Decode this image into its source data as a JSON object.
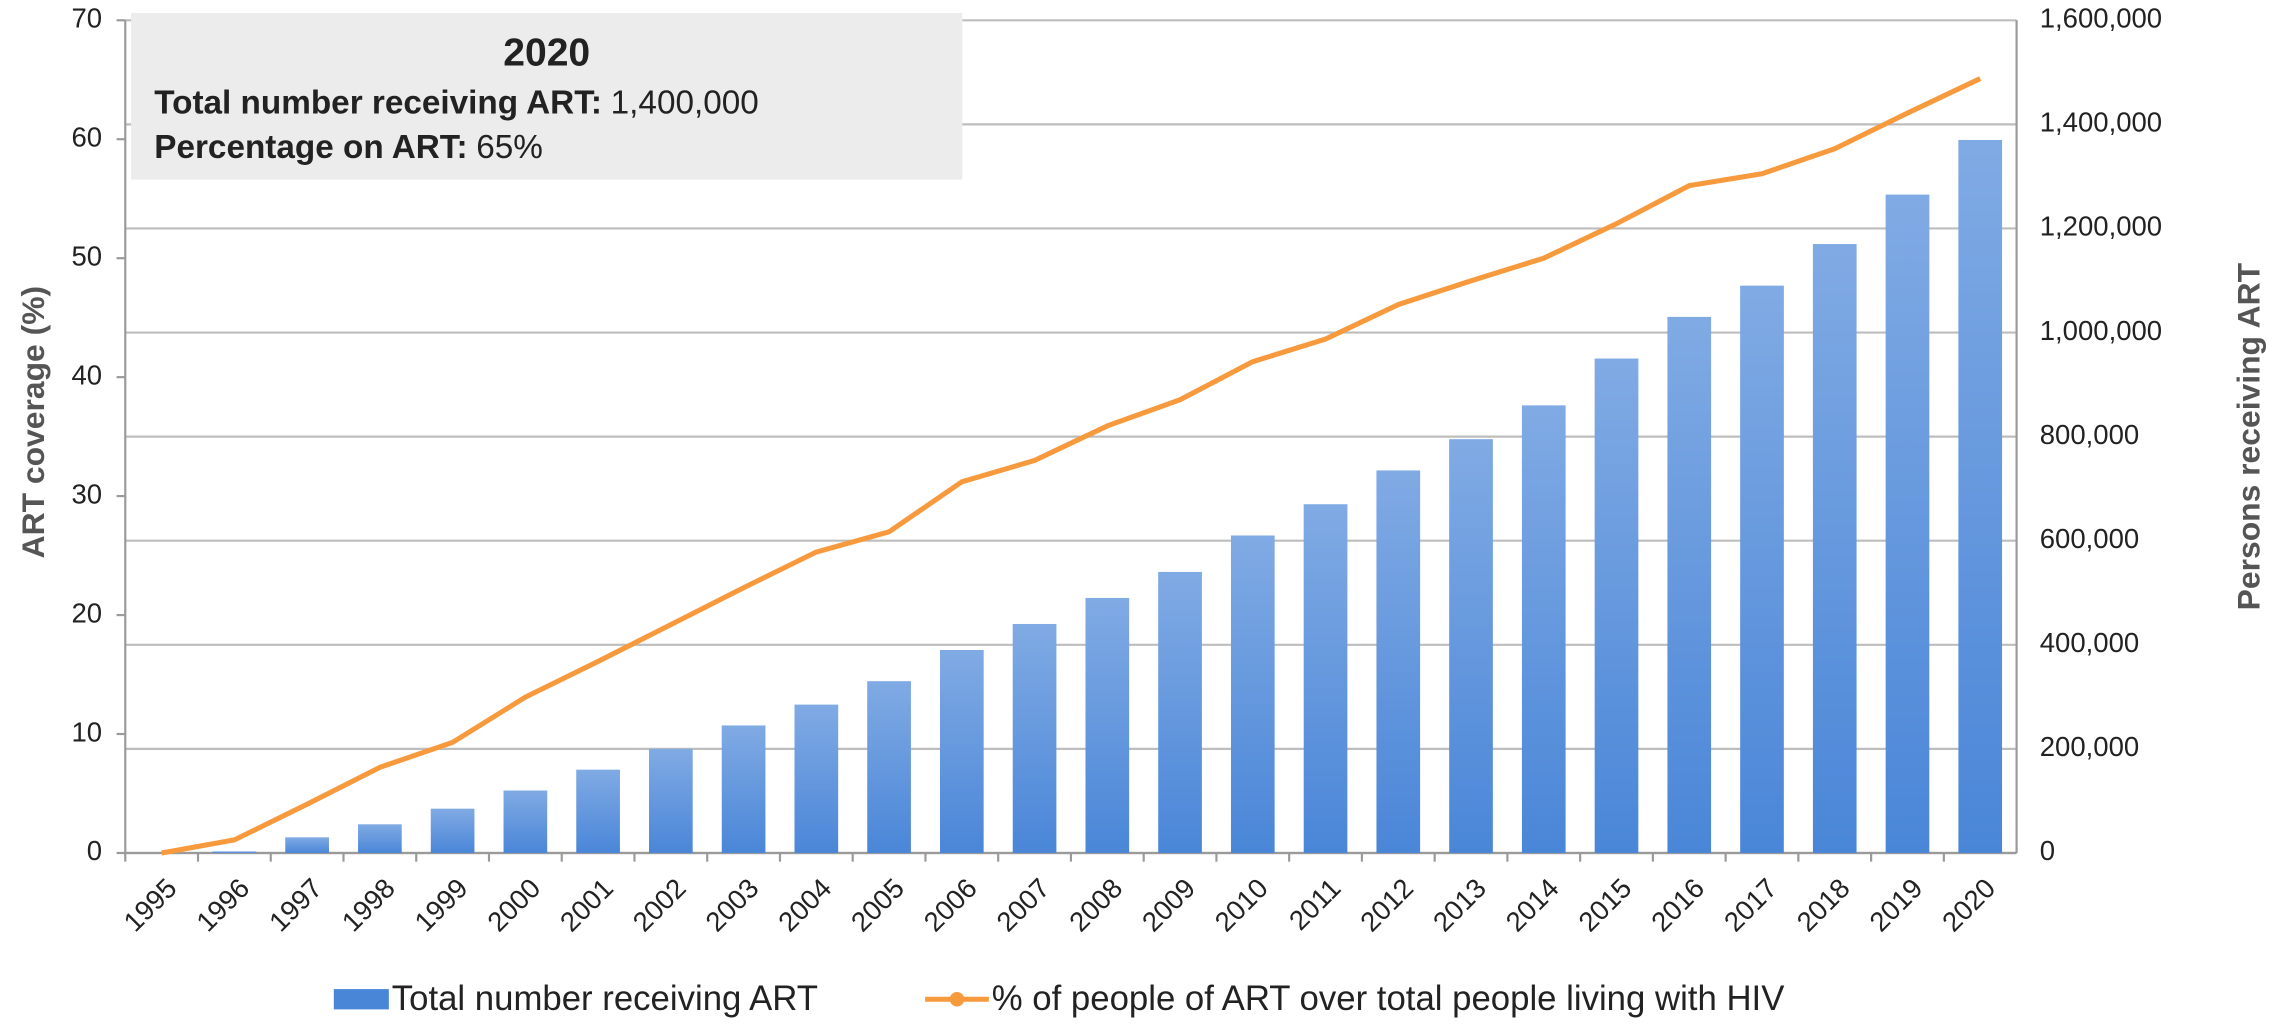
{
  "chart_data": {
    "type": "bar-line",
    "categories": [
      "1995",
      "1996",
      "1997",
      "1998",
      "1999",
      "2000",
      "2001",
      "2002",
      "2003",
      "2004",
      "2005",
      "2006",
      "2007",
      "2008",
      "2009",
      "2010",
      "2011",
      "2012",
      "2013",
      "2014",
      "2015",
      "2016",
      "2017",
      "2018",
      "2019",
      "2020"
    ],
    "series": [
      {
        "name": "Total number receiving ART",
        "type": "bar",
        "axis": "y2",
        "color": "#4a86d8",
        "values": [
          0,
          3000,
          30000,
          55000,
          85000,
          120000,
          160000,
          200000,
          245000,
          285000,
          330000,
          390000,
          440000,
          490000,
          540000,
          610000,
          670000,
          735000,
          795000,
          860000,
          950000,
          1030000,
          1090000,
          1170000,
          1265000,
          1370000
        ]
      },
      {
        "name": "% of people of ART over total people living with HIV",
        "type": "line",
        "axis": "y",
        "color": "#f79a3e",
        "values": [
          0,
          1.1,
          4.1,
          7.2,
          9.3,
          13.1,
          16.1,
          19.2,
          22.3,
          25.3,
          27.0,
          31.2,
          33.0,
          35.9,
          38.1,
          41.3,
          43.2,
          46.1,
          48.1,
          50.0,
          52.9,
          56.1,
          57.1,
          59.2,
          62.2,
          65.1
        ]
      }
    ],
    "y_label": "ART coverage (%)",
    "y2_label": "Persons receiving ART",
    "ylim": [
      0,
      70
    ],
    "yticks": [
      0,
      10,
      20,
      30,
      40,
      50,
      60,
      70
    ],
    "y2lim": [
      0,
      1600000
    ],
    "y2ticks": [
      0,
      {
        "value": 200000,
        "label": "200,000"
      },
      {
        "value": 400000,
        "label": "400,000"
      },
      {
        "value": 600000,
        "label": "600,000"
      },
      {
        "value": 800000,
        "label": "800,000"
      },
      {
        "value": 1000000,
        "label": "1,000,000"
      },
      {
        "value": 1200000,
        "label": "1,200,000"
      },
      {
        "value": 1400000,
        "label": "1,400,000"
      },
      {
        "value": 1600000,
        "label": "1,600,000"
      }
    ],
    "grid": true,
    "legend": "bottom",
    "annotation": {
      "title": "2020",
      "lines": [
        {
          "label": "Total number receiving ART:",
          "value": "1,400,000"
        },
        {
          "label": "Percentage on ART:",
          "value": "65%"
        }
      ]
    }
  }
}
